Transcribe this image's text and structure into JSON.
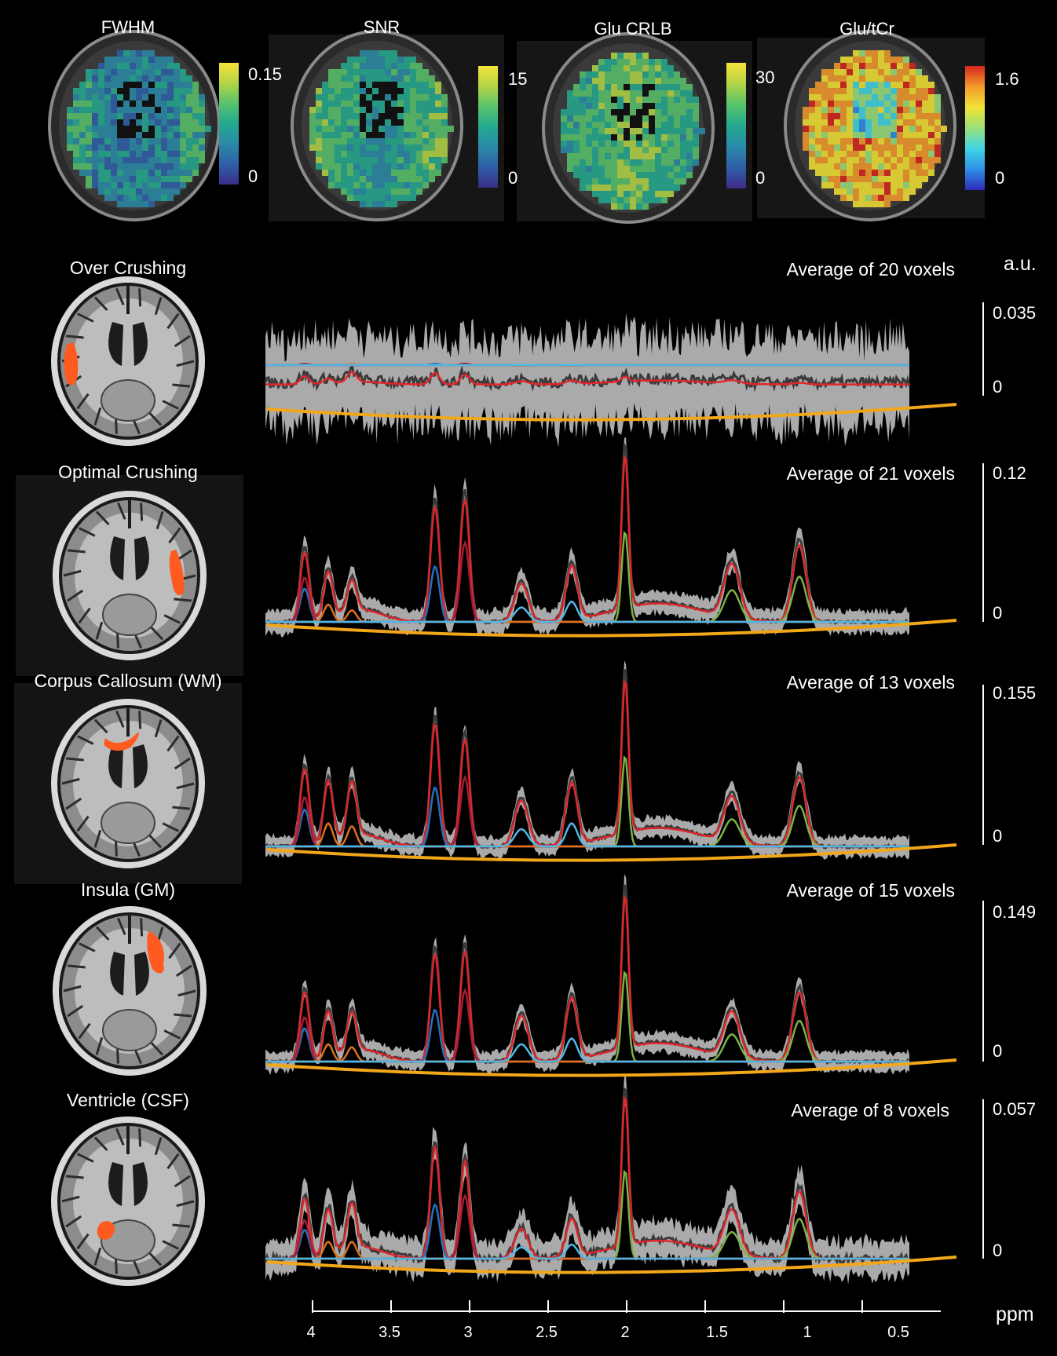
{
  "maps": [
    {
      "title": "FWHM",
      "max": "0.15",
      "min": "0",
      "cmap": "viridis"
    },
    {
      "title": "SNR",
      "max": "15",
      "min": "0",
      "cmap": "viridis"
    },
    {
      "title": "Glu CRLB",
      "max": "30",
      "min": "0",
      "cmap": "viridis"
    },
    {
      "title": "Glu/tCr",
      "max": "1.6",
      "min": "0",
      "cmap": "jet"
    }
  ],
  "unit_label": "a.u.",
  "rows": [
    {
      "title": "Over Crushing",
      "avg": "Average of 20 voxels",
      "scale_max": "0.035",
      "scale_min": "0",
      "roi": "left-lateral"
    },
    {
      "title": "Optimal Crushing",
      "avg": "Average of 21 voxels",
      "scale_max": "0.12",
      "scale_min": "0",
      "roi": "right-lateral"
    },
    {
      "title": "Corpus Callosum (WM)",
      "avg": "Average of 13 voxels",
      "scale_max": "0.155",
      "scale_min": "0",
      "roi": "genu"
    },
    {
      "title": "Insula (GM)",
      "avg": "Average of 15 voxels",
      "scale_max": "0.149",
      "scale_min": "0",
      "roi": "insula"
    },
    {
      "title": "Ventricle (CSF)",
      "avg": "Average of 8 voxels",
      "scale_max": "0.057",
      "scale_min": "0",
      "roi": "ventricle"
    }
  ],
  "chart_data": {
    "type": "line",
    "xlabel": "ppm",
    "xticks": [
      "4",
      "3.5",
      "3",
      "2.5",
      "2",
      "1.5",
      "1",
      "0.5"
    ],
    "xtick_values": [
      4,
      3.5,
      3,
      2.5,
      2,
      1.5,
      1,
      0.5
    ],
    "xlim": [
      4.3,
      0.2
    ],
    "peaks_ppm": [
      4.05,
      3.9,
      3.75,
      3.22,
      3.03,
      2.67,
      2.35,
      2.01,
      1.33,
      0.9
    ]
  },
  "colors": {
    "background": "#000000",
    "data_band": "#c8c8c8",
    "data_line": "#3a3a3a",
    "fit": "#e0262a",
    "naa": "#7cb342",
    "creatine": "#1e73be",
    "choline": "#a31d3a",
    "glx": "#e0701a",
    "glu": "#4fb8e8",
    "baseline": "#f2a71b",
    "roi": "#ff5a1f"
  }
}
